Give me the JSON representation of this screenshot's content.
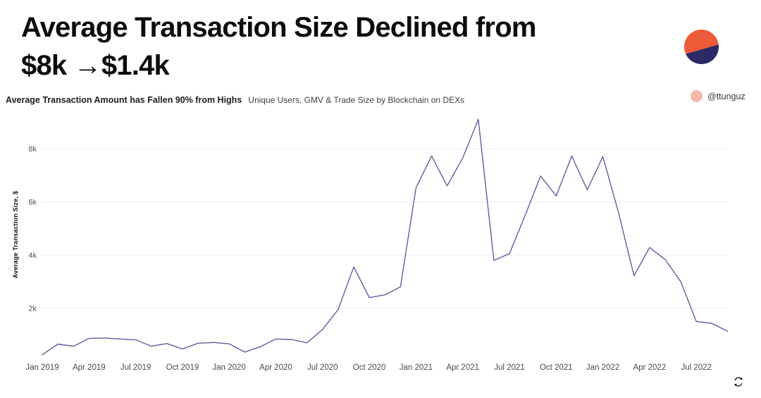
{
  "title": {
    "line1": "Average Transaction Size Declined from",
    "line2": "$8k →$1.4k"
  },
  "subtitle": {
    "bold": "Average Transaction Amount has Fallen 90% from Highs",
    "regular": "Unique Users, GMV & Trade Size by Blockchain on DEXs"
  },
  "attribution": {
    "handle": "@ttunguz"
  },
  "colors": {
    "title_text": "#0c0c0c",
    "grid": "#ebebeb",
    "logo_orange": "#ee5a3a",
    "logo_navy": "#2b2a66",
    "badge_pink": "#f6b7a9",
    "icon_dark": "#111111"
  },
  "icons": {
    "logo": "brand-logo-icon",
    "avatar": "author-avatar-icon",
    "refresh": "refresh-icon"
  },
  "chart_data": {
    "type": "line",
    "title": "Average Transaction Size Declined from $8k →$1.4k",
    "xlabel": "",
    "ylabel": "Average Transaction Size, $",
    "line_color": "#5f5f9c",
    "grid": "horizontal",
    "legend": "none",
    "ylim": [
      0,
      9300
    ],
    "y_ticks": [
      2000,
      4000,
      6000,
      8000
    ],
    "y_tick_labels": [
      "2k",
      "4k",
      "6k",
      "8k"
    ],
    "x_tick_every": 3,
    "x_tick_labels": [
      "Jan 2019",
      "Apr 2019",
      "Jul 2019",
      "Oct 2019",
      "Jan 2020",
      "Apr 2020",
      "Jul 2020",
      "Oct 2020",
      "Jan 2021",
      "Apr 2021",
      "Jul 2021",
      "Oct 2021",
      "Jan 2022",
      "Apr 2022",
      "Jul 2022"
    ],
    "x": [
      "Jan 2019",
      "Feb 2019",
      "Mar 2019",
      "Apr 2019",
      "May 2019",
      "Jun 2019",
      "Jul 2019",
      "Aug 2019",
      "Sep 2019",
      "Oct 2019",
      "Nov 2019",
      "Dec 2019",
      "Jan 2020",
      "Feb 2020",
      "Mar 2020",
      "Apr 2020",
      "May 2020",
      "Jun 2020",
      "Jul 2020",
      "Aug 2020",
      "Sep 2020",
      "Oct 2020",
      "Nov 2020",
      "Dec 2020",
      "Jan 2021",
      "Feb 2021",
      "Mar 2021",
      "Apr 2021",
      "May 2021",
      "Jun 2021",
      "Jul 2021",
      "Aug 2021",
      "Sep 2021",
      "Oct 2021",
      "Nov 2021",
      "Dec 2021",
      "Jan 2022",
      "Feb 2022",
      "Mar 2022",
      "Apr 2022",
      "May 2022",
      "Jun 2022",
      "Jul 2022",
      "Aug 2022",
      "Sep 2022"
    ],
    "values": [
      250,
      650,
      570,
      860,
      880,
      840,
      810,
      570,
      670,
      470,
      680,
      710,
      660,
      350,
      550,
      840,
      820,
      700,
      1200,
      1950,
      3550,
      2400,
      2500,
      2800,
      6530,
      7720,
      6600,
      7650,
      9100,
      3800,
      4050,
      5480,
      6970,
      6220,
      7720,
      6450,
      7700,
      5600,
      3220,
      4280,
      3830,
      3000,
      1500,
      1430,
      1130
    ]
  }
}
